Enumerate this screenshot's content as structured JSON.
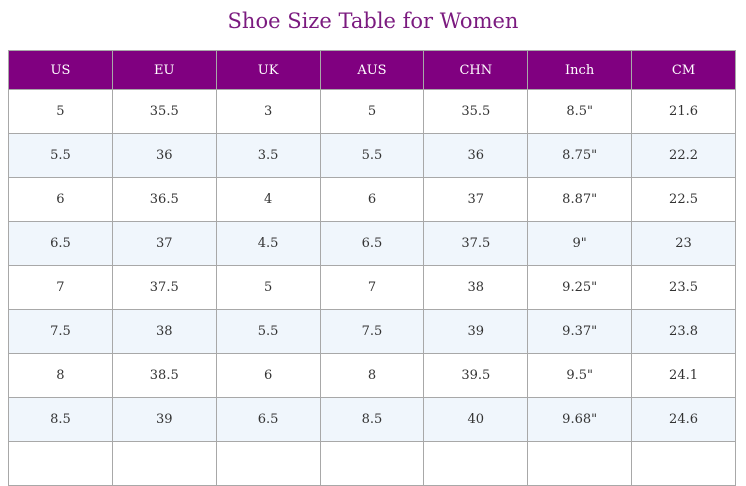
{
  "title": "Shoe Size Table for Women",
  "columns": [
    "US",
    "EU",
    "UK",
    "AUS",
    "CHN",
    "Inch",
    "CM"
  ],
  "rows": [
    [
      "5",
      "35.5",
      "3",
      "5",
      "35.5",
      "8.5\"",
      "21.6"
    ],
    [
      "5.5",
      "36",
      "3.5",
      "5.5",
      "36",
      "8.75\"",
      "22.2"
    ],
    [
      "6",
      "36.5",
      "4",
      "6",
      "37",
      "8.87\"",
      "22.5"
    ],
    [
      "6.5",
      "37",
      "4.5",
      "6.5",
      "37.5",
      "9\"",
      "23"
    ],
    [
      "7",
      "37.5",
      "5",
      "7",
      "38",
      "9.25\"",
      "23.5"
    ],
    [
      "7.5",
      "38",
      "5.5",
      "7.5",
      "39",
      "9.37\"",
      "23.8"
    ],
    [
      "8",
      "38.5",
      "6",
      "8",
      "39.5",
      "9.5\"",
      "24.1"
    ],
    [
      "8.5",
      "39",
      "6.5",
      "8.5",
      "40",
      "9.68\"",
      "24.6"
    ],
    [
      "",
      "",
      "",
      "",
      "",
      "",
      ""
    ]
  ],
  "colors": {
    "title": "#7b1a7f",
    "header_bg": "#800080",
    "header_text": "#ffffff",
    "stripe_bg": "#f0f6fc",
    "border": "#a8a8a8"
  }
}
